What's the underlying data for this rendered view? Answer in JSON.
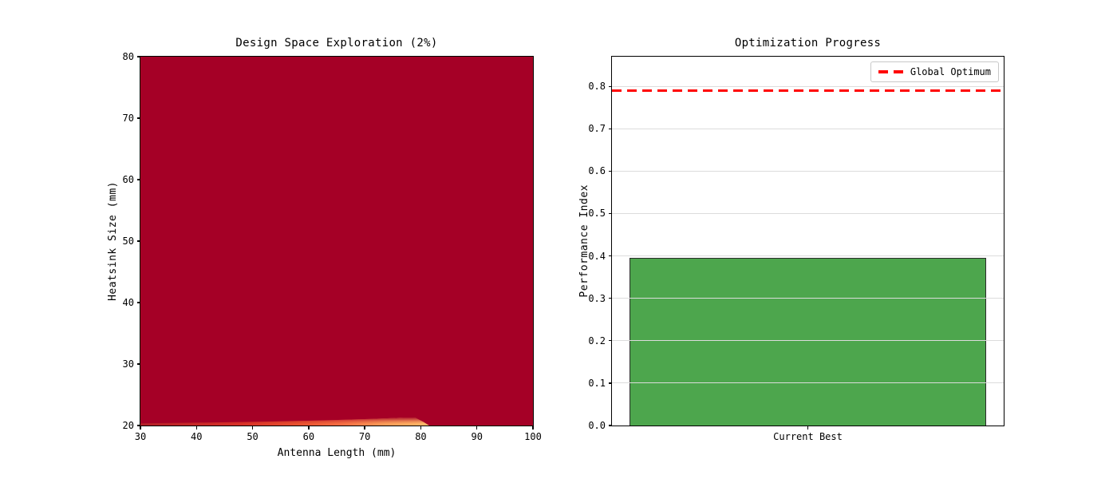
{
  "chart_data": [
    {
      "type": "heatmap",
      "title": "Design Space Exploration (2%)",
      "xlabel": "Antenna Length (mm)",
      "ylabel": "Heatsink Size (mm)",
      "xlim": [
        30,
        100
      ],
      "ylim": [
        20,
        80
      ],
      "xticks": [
        30,
        40,
        50,
        60,
        70,
        80,
        90,
        100
      ],
      "yticks": [
        20,
        30,
        40,
        50,
        60,
        70,
        80
      ],
      "grid": false,
      "field_color": "#a50026",
      "ridge": {
        "description": "thin bright ridge of higher values hugging the bottom edge; brightens and thickens from x=30 toward x≈81, then sharp cutoff back to the dark-red field",
        "x_start": 30,
        "x_peak": 81,
        "x_cutoff": 81.5,
        "y_base": 20,
        "y_top": 21.3,
        "colors": [
          "#b21e27",
          "#d73027",
          "#f46d43",
          "#fdae61",
          "#fdb96d"
        ]
      }
    },
    {
      "type": "bar",
      "title": "Optimization Progress",
      "xlabel": "",
      "ylabel": "Performance Index",
      "categories": [
        "Current Best"
      ],
      "values": [
        0.395
      ],
      "yticks": [
        0.0,
        0.1,
        0.2,
        0.3,
        0.4,
        0.5,
        0.6,
        0.7,
        0.8
      ],
      "ylim": [
        0,
        0.87
      ],
      "bar_color": "#4da64d",
      "bar_edge_color": "#2b2b2b",
      "grid": true,
      "grid_color": "#dcdcdc",
      "reference_line": {
        "label": "Global Optimum",
        "value": 0.79,
        "color": "#ff0000",
        "style": "dashed"
      },
      "legend": {
        "position": "upper right",
        "entries": [
          {
            "label": "Global Optimum",
            "marker": "red-dashed-line"
          }
        ]
      }
    }
  ]
}
